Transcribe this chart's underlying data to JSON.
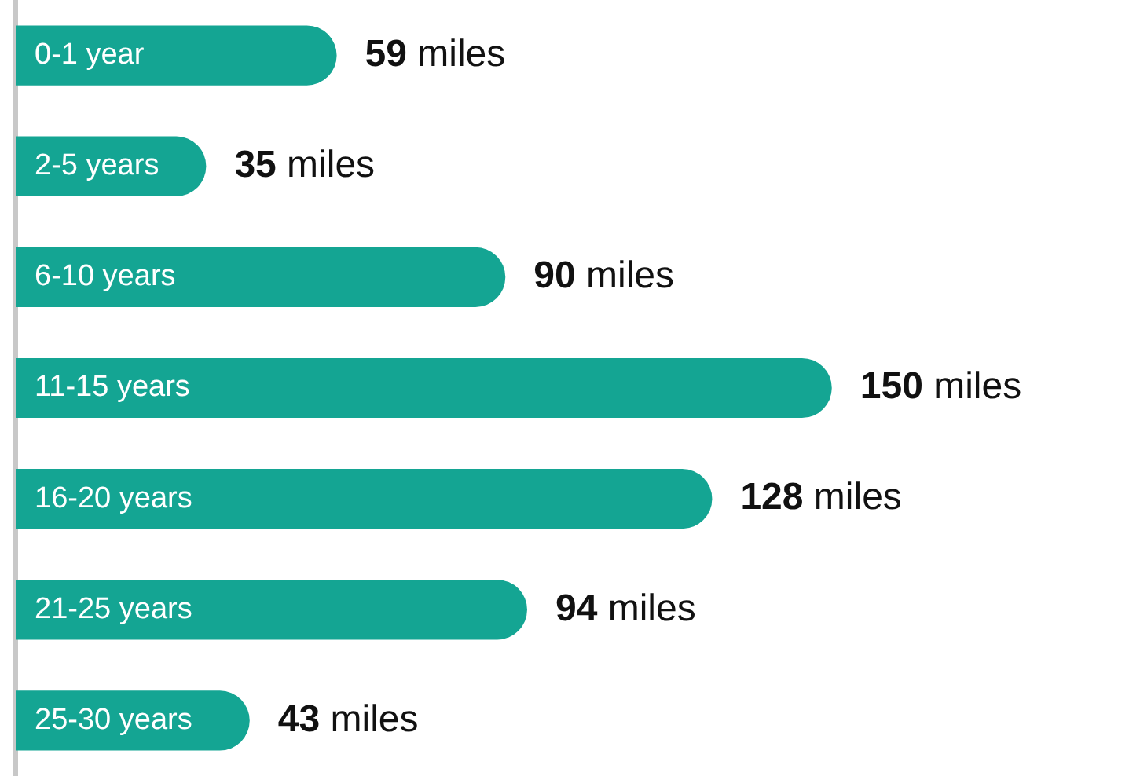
{
  "chart_data": {
    "type": "bar",
    "orientation": "horizontal",
    "categories": [
      "0-1 year",
      "2-5 years",
      "6-10 years",
      "11-15 years",
      "16-20 years",
      "21-25 years",
      "25-30 years"
    ],
    "values": [
      59,
      35,
      90,
      150,
      128,
      94,
      43
    ],
    "color": "#14a593",
    "value_labels": [
      "59 miles",
      "35 miles",
      "90 miles",
      "150 miles",
      "128 miles",
      "94 miles",
      "43 miles"
    ],
    "legend": false
  }
}
